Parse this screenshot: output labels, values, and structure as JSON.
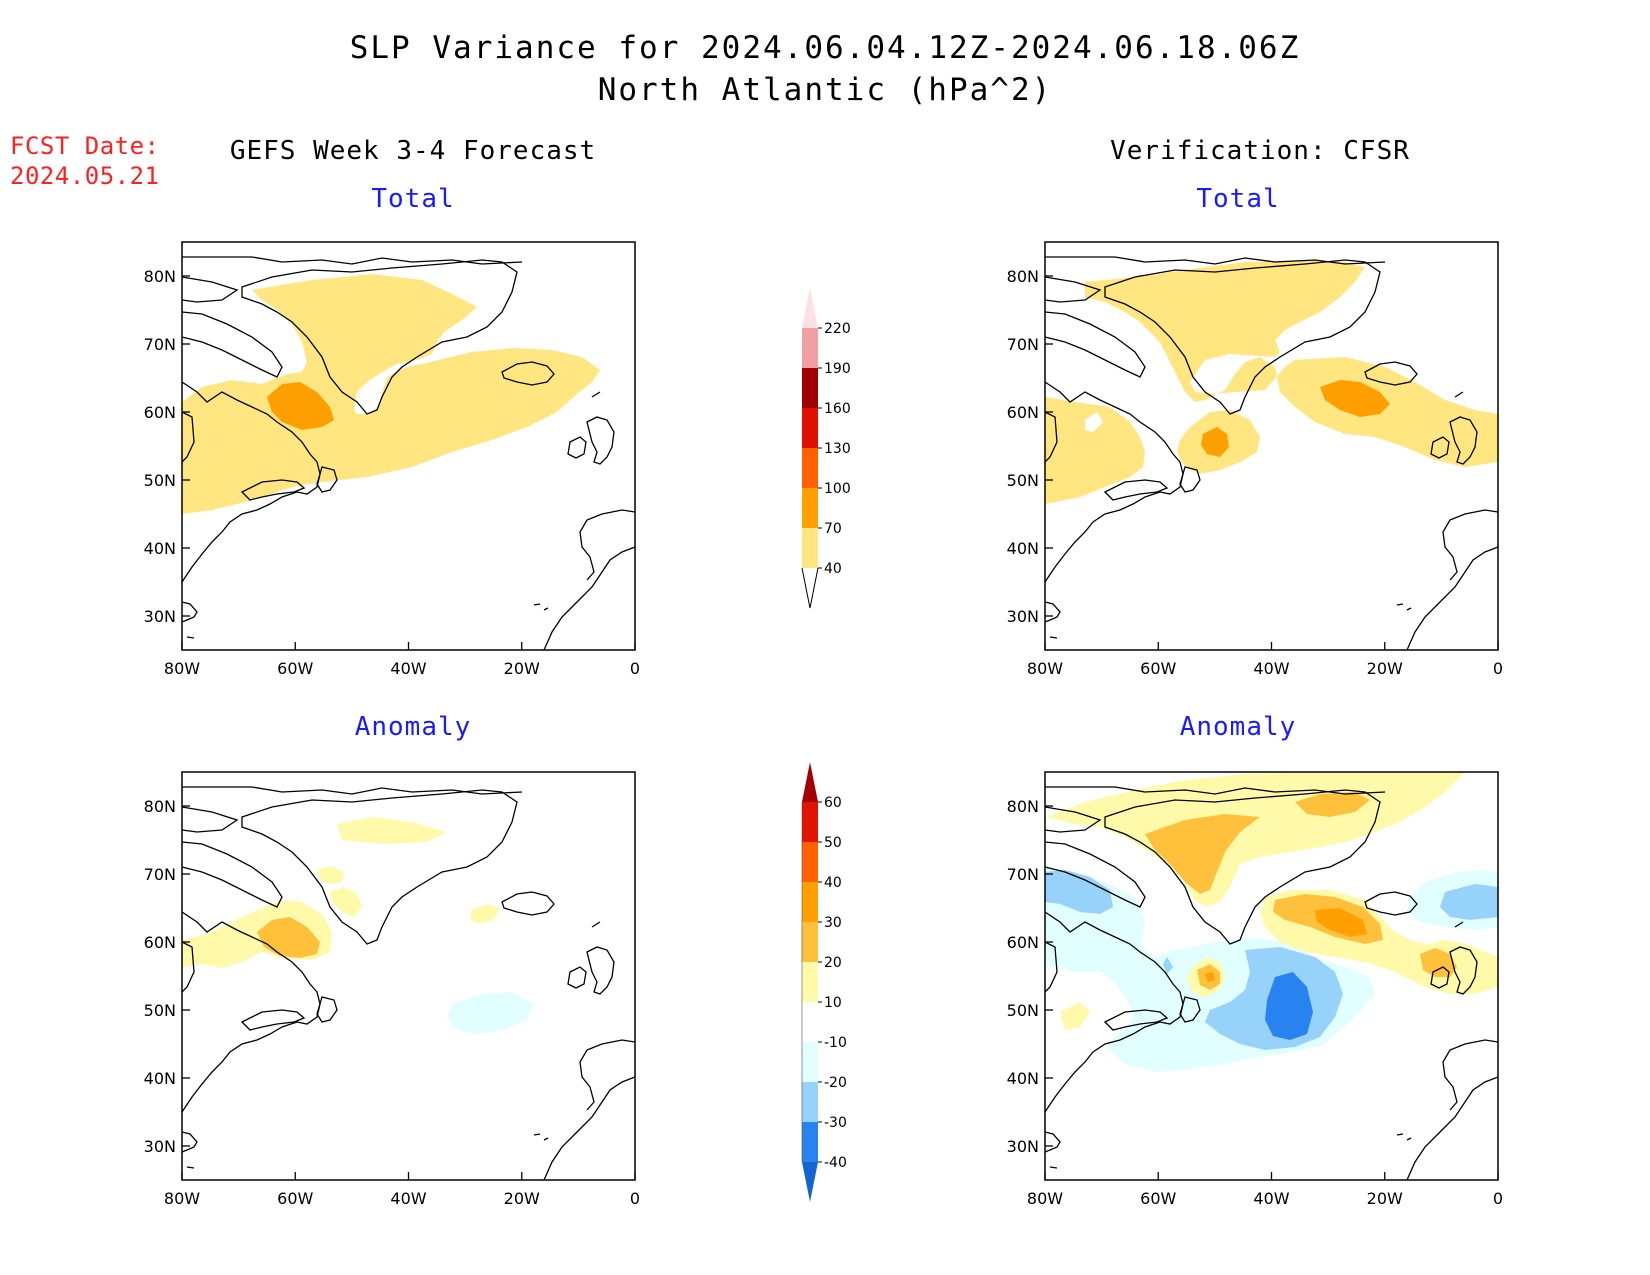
{
  "title": {
    "line1": "SLP Variance for 2024.06.04.12Z-2024.06.18.06Z",
    "line2": "North Atlantic (hPa^2)"
  },
  "forecast_date": {
    "label": "FCST Date:",
    "value": "2024.05.21"
  },
  "columns": {
    "left": "GEFS Week 3-4 Forecast",
    "right": "Verification: CFSR"
  },
  "rows": {
    "top": "Total",
    "bottom": "Anomaly"
  },
  "axes": {
    "lon_labels": [
      "80W",
      "60W",
      "40W",
      "20W",
      "0"
    ],
    "lat_labels": [
      "80N",
      "70N",
      "60N",
      "50N",
      "40N",
      "30N"
    ]
  },
  "colorbars": {
    "total": {
      "levels": [
        "40",
        "70",
        "100",
        "130",
        "160",
        "190",
        "220"
      ],
      "colors": [
        "#ffe680",
        "#ffa000",
        "#ff6000",
        "#e01000",
        "#a00000",
        "#f0a0a0",
        "#ffe0e0"
      ]
    },
    "anomaly": {
      "levels": [
        "-40",
        "-30",
        "-20",
        "-10",
        "10",
        "20",
        "30",
        "40",
        "50",
        "60"
      ],
      "colors": [
        "#1464d2",
        "#2882f0",
        "#96d2fa",
        "#e1ffff",
        "#ffffff",
        "#fffaaa",
        "#ffc03c",
        "#ffa000",
        "#ff6000",
        "#e01400",
        "#a50000"
      ]
    }
  },
  "chart_data": [
    {
      "type": "heatmap",
      "panel": "GEFS Week 3-4 Forecast - Total",
      "region_lon": [
        -80,
        0
      ],
      "region_lat": [
        25,
        85
      ],
      "max_region": "Labrador Sea ~60N 60W, 70-100 hPa^2",
      "field": "40-70 hPa^2 over Greenland, Labrador Sea and the Irminger/Iceland basin"
    },
    {
      "type": "heatmap",
      "panel": "Verification: CFSR - Total",
      "region_lon": [
        -80,
        0
      ],
      "region_lat": [
        25,
        85
      ],
      "max_region": "~53N 48W and ~62N 25W, 70-100 hPa^2",
      "field": "40-70 hPa^2 over Greenland, Hudson Bay/Labrador and Iceland to UK"
    },
    {
      "type": "heatmap",
      "panel": "GEFS Week 3-4 Forecast - Anomaly",
      "region_lon": [
        -80,
        0
      ],
      "region_lat": [
        25,
        85
      ],
      "max_region": "~61N 58W, 20-30 hPa^2",
      "min_region": "~51N 27W, -10 to -20 hPa^2"
    },
    {
      "type": "heatmap",
      "panel": "Verification: CFSR - Anomaly",
      "region_lon": [
        -80,
        0
      ],
      "region_lat": [
        25,
        85
      ],
      "max_region": "~62N 27W, 30-40 hPa^2",
      "min_region": "~48N 36W, -30 to -40 hPa^2"
    }
  ]
}
